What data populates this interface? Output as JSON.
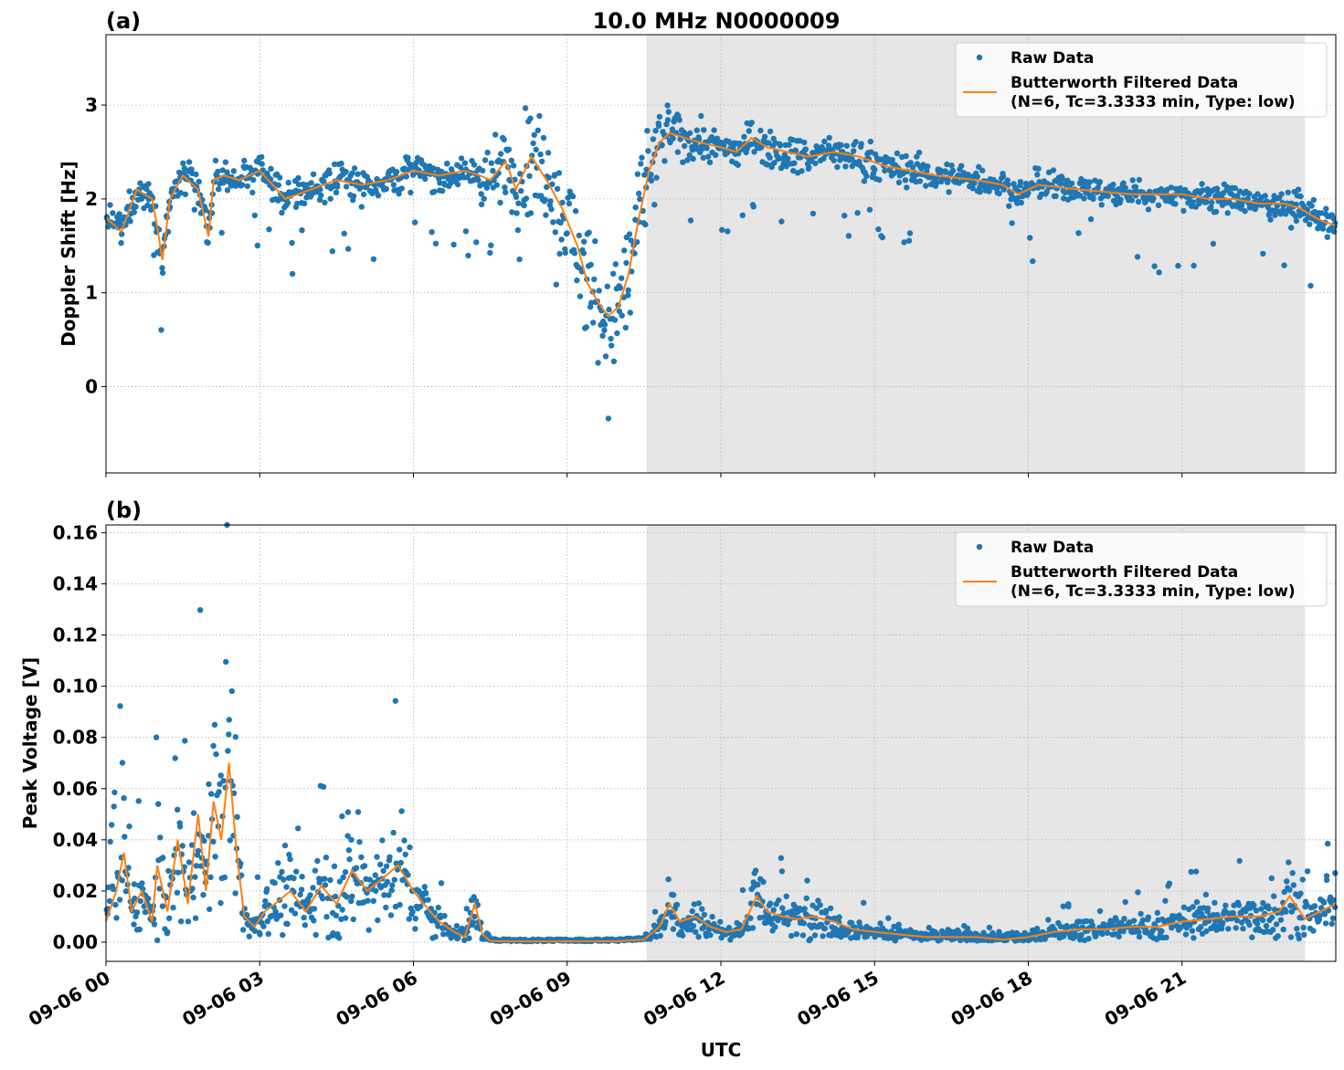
{
  "figure": {
    "title": "10.0 MHz N0000009",
    "xlabel": "UTC",
    "colors": {
      "raw": "#1f77b4",
      "filtered": "#ff7f0e",
      "shade": "#e6e6e6",
      "grid": "#b0b0b0"
    },
    "shaded_interval_hours": [
      10.55,
      23.4
    ],
    "x_ticks": [
      {
        "h": 0,
        "label": "09-06 00"
      },
      {
        "h": 3,
        "label": "09-06 03"
      },
      {
        "h": 6,
        "label": "09-06 06"
      },
      {
        "h": 9,
        "label": "09-06 09"
      },
      {
        "h": 12,
        "label": "09-06 12"
      },
      {
        "h": 15,
        "label": "09-06 15"
      },
      {
        "h": 18,
        "label": "09-06 18"
      },
      {
        "h": 21,
        "label": "09-06 21"
      }
    ]
  },
  "legend": {
    "raw_label": "Raw Data",
    "filtered_line1": "Butterworth Filtered Data",
    "filtered_line2": "(N=6, Tc=3.3333 min, Type: low)"
  },
  "chart_data": [
    {
      "type": "scatter",
      "panel_label": "(a)",
      "title": "10.0 MHz N0000009",
      "xlabel": "",
      "ylabel": "Doppler Shift [Hz]",
      "xlim_hours": [
        0,
        24
      ],
      "ylim": [
        -0.92,
        3.75
      ],
      "grid": true,
      "legend_position": "top-right",
      "yticks": [
        {
          "v": 0,
          "label": "0"
        },
        {
          "v": 1,
          "label": "1"
        },
        {
          "v": 2,
          "label": "2"
        },
        {
          "v": 3,
          "label": "3"
        }
      ],
      "series": [
        {
          "name": "Butterworth Filtered Data (N=6, Tc=3.3333 min, Type: low)",
          "x_hours": [
            0,
            0.3,
            0.6,
            0.9,
            1.0,
            1.1,
            1.25,
            1.5,
            1.8,
            2.0,
            2.1,
            2.3,
            2.6,
            3.0,
            3.5,
            4.0,
            4.5,
            5.0,
            5.5,
            6.0,
            6.5,
            7.0,
            7.3,
            7.5,
            7.8,
            8.0,
            8.3,
            8.6,
            8.9,
            9.2,
            9.4,
            9.6,
            9.8,
            10.0,
            10.2,
            10.4,
            10.6,
            10.8,
            11.0,
            11.3,
            11.6,
            12.0,
            12.3,
            12.6,
            12.9,
            13.3,
            13.7,
            14.2,
            14.7,
            15.2,
            15.7,
            16.2,
            17.0,
            17.5,
            17.8,
            18.2,
            19.0,
            20.0,
            21.0,
            21.5,
            22.0,
            22.5,
            23.0,
            23.3,
            23.6,
            23.8,
            24.0
          ],
          "y": [
            1.8,
            1.65,
            2.1,
            2.0,
            1.7,
            1.35,
            2.0,
            2.25,
            2.1,
            1.6,
            2.2,
            2.25,
            2.2,
            2.3,
            2.0,
            2.1,
            2.2,
            2.15,
            2.2,
            2.3,
            2.25,
            2.3,
            2.25,
            2.2,
            2.4,
            2.1,
            2.45,
            2.2,
            1.9,
            1.5,
            1.1,
            0.9,
            0.75,
            0.85,
            1.2,
            1.8,
            2.3,
            2.6,
            2.7,
            2.65,
            2.6,
            2.55,
            2.5,
            2.65,
            2.55,
            2.5,
            2.45,
            2.5,
            2.45,
            2.35,
            2.3,
            2.25,
            2.2,
            2.15,
            2.05,
            2.15,
            2.1,
            2.05,
            2.05,
            2.0,
            2.0,
            1.95,
            1.95,
            1.9,
            1.8,
            1.75,
            1.72
          ]
        }
      ]
    },
    {
      "type": "scatter",
      "panel_label": "(b)",
      "title": "",
      "xlabel": "UTC",
      "ylabel": "Peak Voltage [V]",
      "xlim_hours": [
        0,
        24
      ],
      "ylim": [
        -0.0075,
        0.163
      ],
      "grid": true,
      "legend_position": "top-right",
      "yticks": [
        {
          "v": 0.0,
          "label": "0.00"
        },
        {
          "v": 0.02,
          "label": "0.02"
        },
        {
          "v": 0.04,
          "label": "0.04"
        },
        {
          "v": 0.06,
          "label": "0.06"
        },
        {
          "v": 0.08,
          "label": "0.08"
        },
        {
          "v": 0.1,
          "label": "0.10"
        },
        {
          "v": 0.12,
          "label": "0.12"
        },
        {
          "v": 0.14,
          "label": "0.14"
        },
        {
          "v": 0.16,
          "label": "0.16"
        }
      ],
      "series": [
        {
          "name": "Butterworth Filtered Data (N=6, Tc=3.3333 min, Type: low)",
          "x_hours": [
            0,
            0.2,
            0.35,
            0.5,
            0.7,
            0.9,
            1.0,
            1.2,
            1.4,
            1.6,
            1.8,
            1.95,
            2.1,
            2.25,
            2.4,
            2.55,
            2.7,
            2.9,
            3.1,
            3.3,
            3.6,
            3.9,
            4.2,
            4.5,
            4.8,
            5.1,
            5.4,
            5.7,
            6.0,
            6.2,
            6.5,
            6.8,
            7.0,
            7.2,
            7.35,
            7.5,
            8.0,
            9.0,
            10.0,
            10.5,
            10.8,
            11.0,
            11.2,
            11.5,
            11.8,
            12.1,
            12.4,
            12.7,
            12.9,
            13.2,
            13.5,
            13.8,
            14.2,
            14.6,
            15.0,
            15.5,
            16.0,
            16.5,
            17.0,
            17.5,
            18.0,
            18.5,
            19.0,
            19.5,
            20.0,
            20.5,
            21.0,
            21.5,
            22.0,
            22.5,
            22.9,
            23.1,
            23.4,
            23.7,
            24.0
          ],
          "y": [
            0.008,
            0.02,
            0.035,
            0.012,
            0.02,
            0.008,
            0.03,
            0.012,
            0.04,
            0.015,
            0.05,
            0.02,
            0.055,
            0.04,
            0.07,
            0.035,
            0.01,
            0.006,
            0.012,
            0.015,
            0.02,
            0.012,
            0.022,
            0.015,
            0.028,
            0.02,
            0.025,
            0.03,
            0.02,
            0.015,
            0.008,
            0.004,
            0.002,
            0.015,
            0.003,
            0.0005,
            0.0003,
            0.0003,
            0.0004,
            0.001,
            0.006,
            0.015,
            0.008,
            0.01,
            0.006,
            0.004,
            0.005,
            0.018,
            0.012,
            0.01,
            0.009,
            0.01,
            0.008,
            0.005,
            0.004,
            0.003,
            0.002,
            0.002,
            0.002,
            0.001,
            0.002,
            0.004,
            0.005,
            0.005,
            0.006,
            0.006,
            0.008,
            0.009,
            0.01,
            0.01,
            0.012,
            0.018,
            0.009,
            0.012,
            0.015
          ]
        }
      ]
    }
  ]
}
